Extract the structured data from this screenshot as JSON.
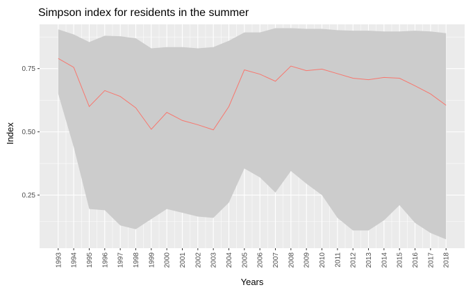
{
  "chart_data": {
    "type": "area",
    "title": "Simpson index for residents in the summer",
    "xlabel": "Years",
    "ylabel": "Index",
    "x": [
      1993,
      1994,
      1995,
      1996,
      1997,
      1998,
      1999,
      2000,
      2001,
      2002,
      2003,
      2004,
      2005,
      2006,
      2007,
      2008,
      2009,
      2010,
      2011,
      2012,
      2013,
      2014,
      2015,
      2016,
      2017,
      2018
    ],
    "x_tick_labels": [
      "1993",
      "1994",
      "1995",
      "1996",
      "1997",
      "1998",
      "1999",
      "2000",
      "2001",
      "2002",
      "2003",
      "2004",
      "2005",
      "2006",
      "2007",
      "2008",
      "2009",
      "2010",
      "2011",
      "2012",
      "2013",
      "2014",
      "2015",
      "2016",
      "2017",
      "2018"
    ],
    "y_ticks": [
      0.25,
      0.5,
      0.75
    ],
    "y_tick_labels": [
      "0.25",
      "0.50",
      "0.75"
    ],
    "ylim": [
      0.04,
      0.925
    ],
    "xlim": [
      1991.8,
      2019.2
    ],
    "grid": true,
    "series": [
      {
        "kind": "ribbon",
        "upper": [
          0.905,
          0.885,
          0.855,
          0.88,
          0.878,
          0.87,
          0.83,
          0.835,
          0.835,
          0.83,
          0.835,
          0.86,
          0.893,
          0.893,
          0.91,
          0.91,
          0.907,
          0.907,
          0.902,
          0.9,
          0.9,
          0.897,
          0.897,
          0.9,
          0.897,
          0.89
        ],
        "lower": [
          0.65,
          0.44,
          0.195,
          0.19,
          0.13,
          0.115,
          0.155,
          0.195,
          0.18,
          0.165,
          0.16,
          0.22,
          0.355,
          0.32,
          0.26,
          0.345,
          0.295,
          0.25,
          0.16,
          0.11,
          0.11,
          0.15,
          0.21,
          0.14,
          0.1,
          0.075
        ],
        "color": "#cccccc"
      },
      {
        "kind": "line",
        "values": [
          0.79,
          0.755,
          0.6,
          0.663,
          0.64,
          0.595,
          0.51,
          0.577,
          0.545,
          0.528,
          0.508,
          0.6,
          0.745,
          0.728,
          0.7,
          0.76,
          0.742,
          0.748,
          0.73,
          0.712,
          0.706,
          0.715,
          0.712,
          0.682,
          0.65,
          0.605
        ],
        "color": "#f8766d"
      }
    ],
    "panel_background": "#ebebeb",
    "grid_color": "#ffffff"
  }
}
